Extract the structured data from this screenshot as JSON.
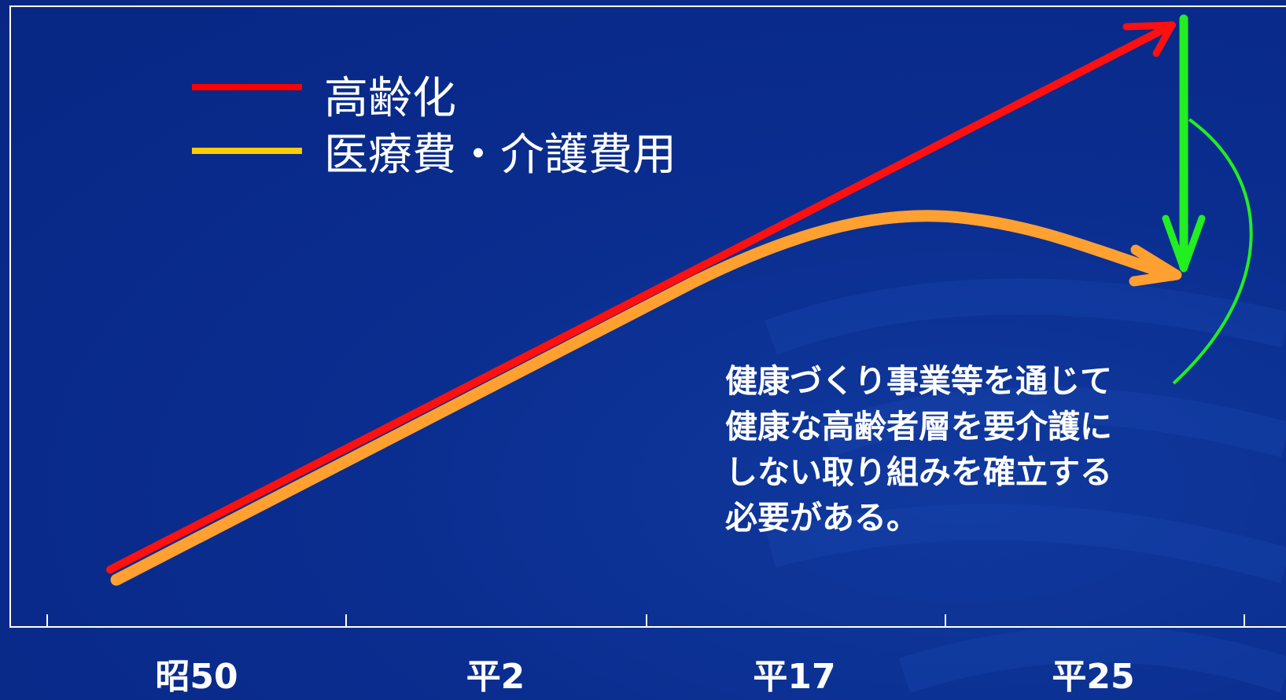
{
  "chart_data": {
    "type": "line",
    "title": "",
    "xlabel": "",
    "ylabel": "",
    "categories": [
      "昭50",
      "平2",
      "平17",
      "平25"
    ],
    "series": [
      {
        "name": "高齢化",
        "color": "#ff1010",
        "trend": "rising"
      },
      {
        "name": "医療費・介護費用",
        "color": "#ffa030",
        "trend": "rising then flattening"
      }
    ],
    "legend": {
      "placement": "top-left",
      "items": [
        {
          "label": "高齢化",
          "color": "#ff0000"
        },
        {
          "label": "医療費・介護費用",
          "color": "#ffcc00"
        }
      ]
    },
    "annotation": {
      "lines": [
        "健康づくり事業等を通じて",
        "健康な高齢者層を要介護に",
        "しない取り組みを確立する",
        "必要がある。"
      ]
    },
    "reduction_arrow_color": "#22ee22",
    "grid": false
  }
}
